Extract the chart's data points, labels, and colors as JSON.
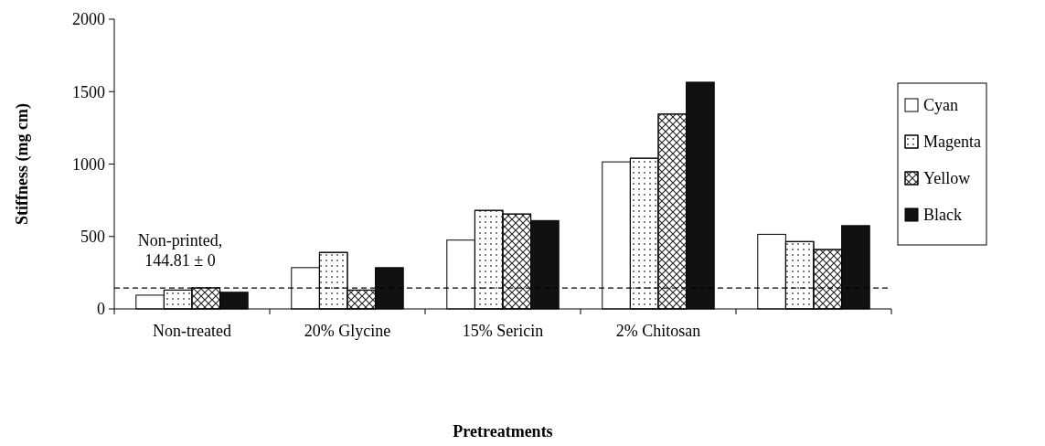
{
  "chart_data": {
    "type": "bar",
    "xlabel": "Pretreatments",
    "ylabel": "Stiffness (mg cm)",
    "categories": [
      "Non-treated",
      "20% Glycine",
      "15% Sericin",
      "2% Chitosan",
      null
    ],
    "series": [
      {
        "name": "Cyan",
        "color": "#ffffff",
        "values": [
          95,
          285,
          475,
          1015,
          515
        ]
      },
      {
        "name": "Magenta",
        "color": "#ffffff",
        "values": [
          130,
          390,
          680,
          1040,
          465
        ]
      },
      {
        "name": "Yellow",
        "color": "#ffffff",
        "values": [
          145,
          130,
          655,
          1345,
          410
        ]
      },
      {
        "name": "Black",
        "color": "#111111",
        "values": [
          115,
          285,
          610,
          1565,
          575
        ]
      }
    ],
    "ylim": [
      0,
      2000
    ],
    "yticks": [
      0,
      500,
      1000,
      1500,
      2000
    ],
    "grid": false,
    "legend": "right",
    "ref_lines": [
      {
        "axis": "y",
        "value": 144.81,
        "label": "Non-printed,\n144.81 ± 0",
        "line_style": "dashed",
        "color": "#000000"
      }
    ]
  }
}
